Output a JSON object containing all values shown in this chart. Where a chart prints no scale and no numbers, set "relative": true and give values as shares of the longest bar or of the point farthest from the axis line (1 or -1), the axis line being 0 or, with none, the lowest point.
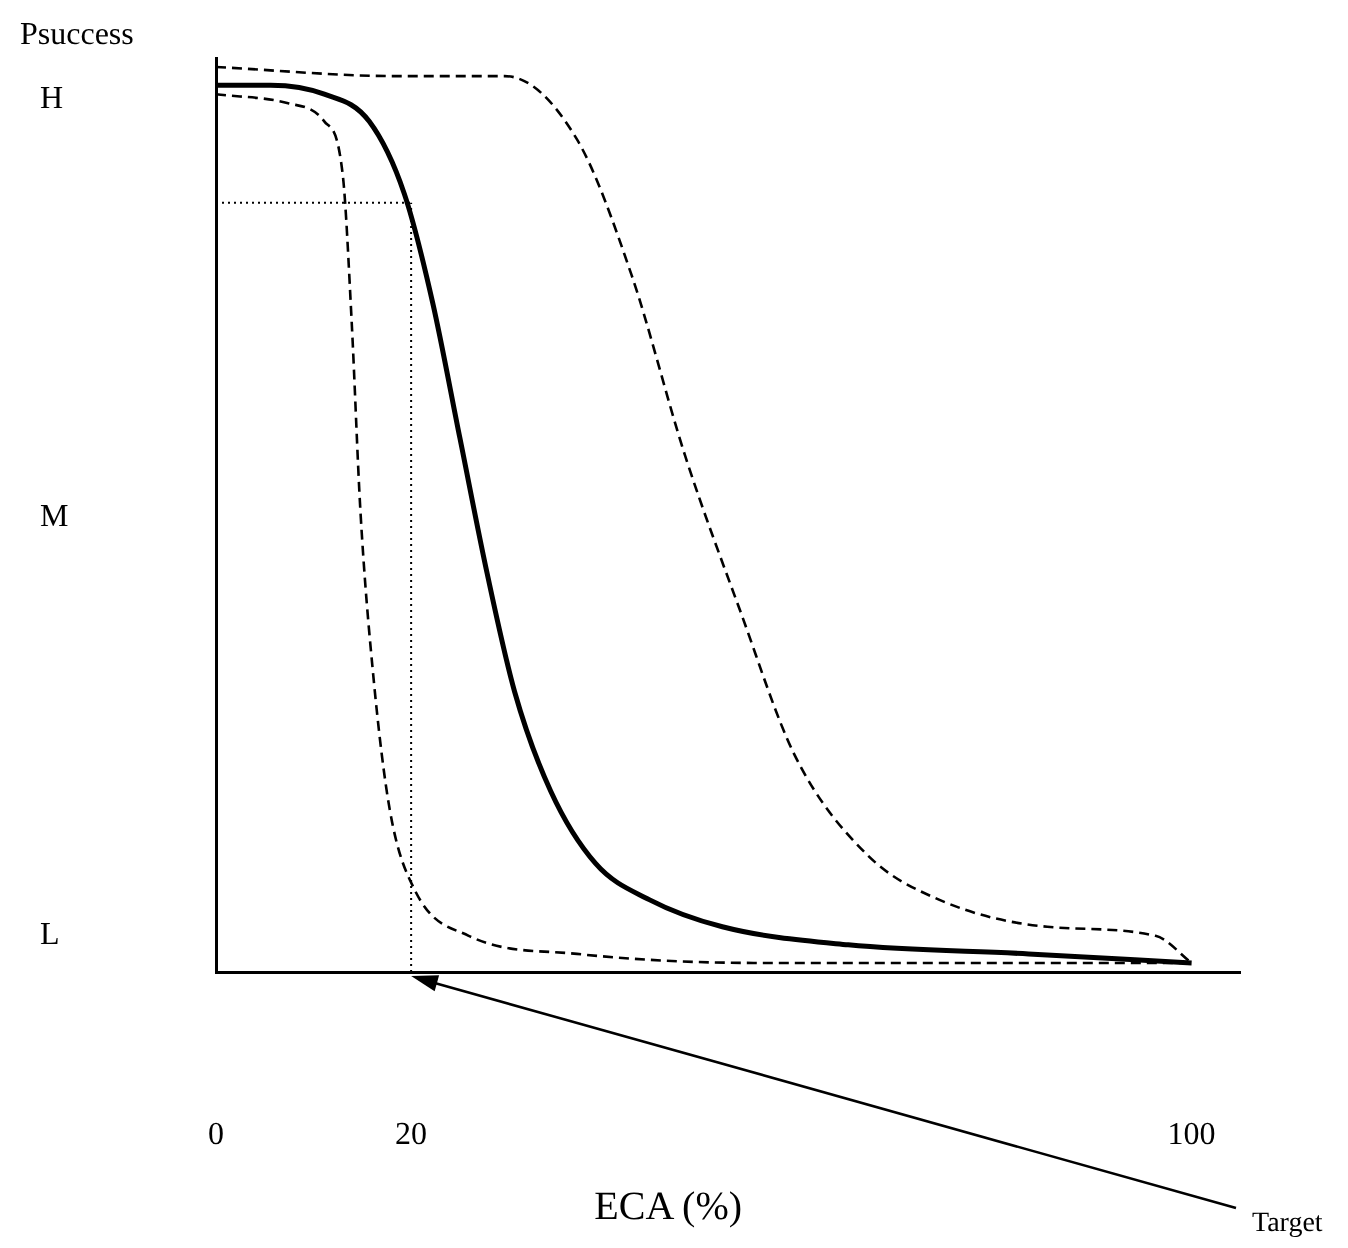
{
  "chart_data": {
    "type": "line",
    "xlabel": "ECA (%)",
    "ylabel": "Psuccess",
    "relative": true,
    "xlim": [
      0,
      105
    ],
    "xticks": [
      0,
      20,
      100
    ],
    "grid": false,
    "legend": false,
    "marker": "none",
    "series": [
      {
        "color": "#000000",
        "line_style": "solid",
        "x": [
          0,
          5.6,
          11.1,
          15.7,
          19.3,
          22.2,
          25,
          27.8,
          30.6,
          34.3,
          38.9,
          44.4,
          51.9,
          64.8,
          83.3,
          100
        ],
        "values": [
          0.98,
          0.98,
          0.97,
          0.94,
          0.86,
          0.74,
          0.59,
          0.44,
          0.31,
          0.2,
          0.12,
          0.08,
          0.05,
          0.03,
          0.02,
          0.01
        ]
      },
      {
        "color": "#000000",
        "line_style": "dashed",
        "x": [
          0,
          7.4,
          11.1,
          13,
          13.9,
          14.8,
          16.1,
          17.8,
          20.4,
          25.9,
          37,
          55.6,
          100
        ],
        "values": [
          0.97,
          0.96,
          0.94,
          0.88,
          0.72,
          0.51,
          0.33,
          0.18,
          0.09,
          0.04,
          0.02,
          0.01,
          0.01
        ]
      },
      {
        "color": "#000000",
        "line_style": "dashed",
        "x": [
          0,
          18.5,
          29.6,
          37,
          42.6,
          48.1,
          53.7,
          59.3,
          66.7,
          74.1,
          85.2,
          96.3,
          100
        ],
        "values": [
          1,
          0.99,
          0.99,
          0.92,
          0.77,
          0.57,
          0.4,
          0.24,
          0.13,
          0.08,
          0.05,
          0.04,
          0.01
        ]
      }
    ],
    "ref_lines": [
      {
        "axis": "x",
        "value": 20,
        "line_style": "dotted",
        "color": "#000000"
      },
      {
        "axis": "y",
        "value": 0.85,
        "line_style": "dotted",
        "color": "#000000"
      }
    ],
    "annotations": [
      "H",
      "M",
      "L",
      "Target"
    ]
  }
}
